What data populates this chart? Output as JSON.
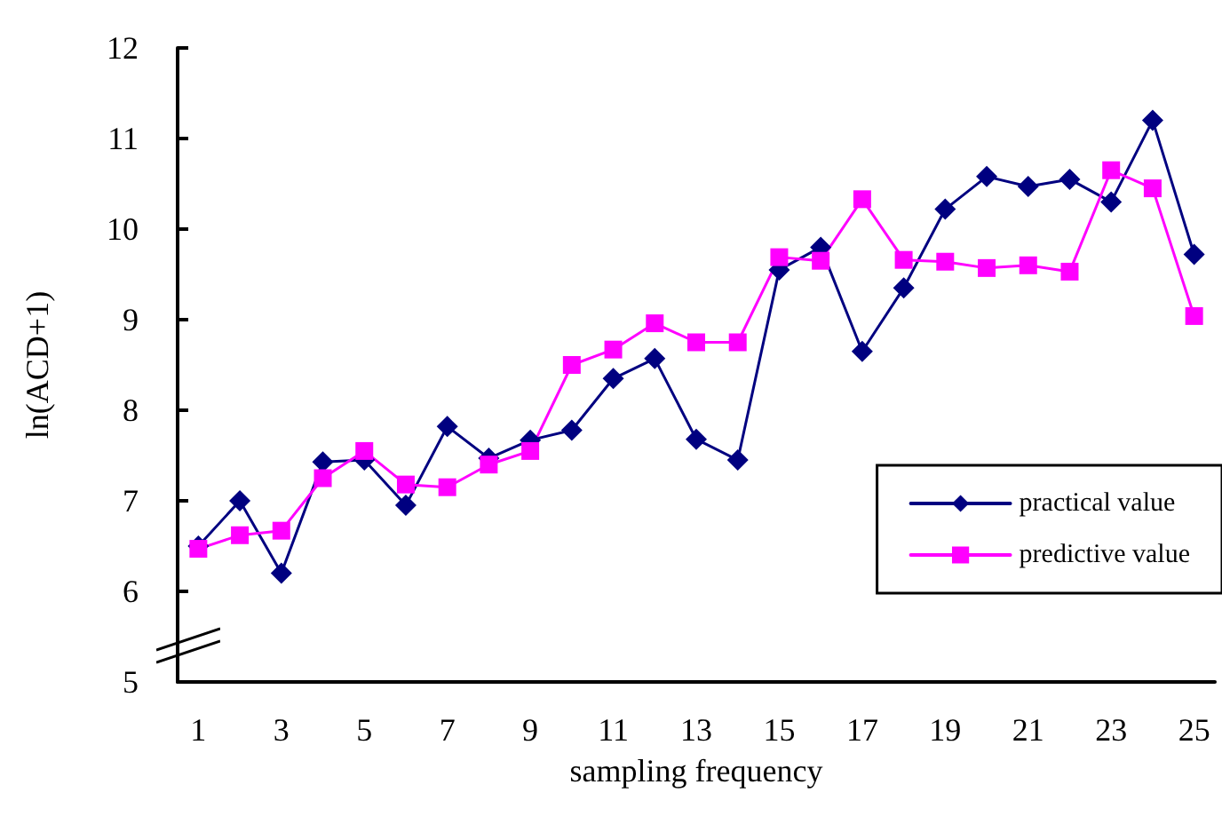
{
  "chart_data": {
    "type": "line",
    "xlabel": "sampling frequency",
    "ylabel": "ln(ACD+1)",
    "x": [
      1,
      2,
      3,
      4,
      5,
      6,
      7,
      8,
      9,
      10,
      11,
      12,
      13,
      14,
      15,
      16,
      17,
      18,
      19,
      20,
      21,
      22,
      23,
      24,
      25
    ],
    "xlim": [
      0.5,
      25.5
    ],
    "xticks": [
      1,
      3,
      5,
      7,
      9,
      11,
      13,
      15,
      17,
      19,
      21,
      23,
      25
    ],
    "ylim": [
      5,
      12
    ],
    "yticks": [
      5,
      6,
      7,
      8,
      9,
      10,
      11,
      12
    ],
    "grid": false,
    "legend": "bottom right",
    "line_style": "solid",
    "series": [
      {
        "name": "practical value",
        "color": "#000080",
        "marker": "diamond",
        "values": [
          6.5,
          7.0,
          6.2,
          7.43,
          7.45,
          6.95,
          7.82,
          7.47,
          7.67,
          7.78,
          8.35,
          8.57,
          7.68,
          7.45,
          9.55,
          9.8,
          8.65,
          9.35,
          10.22,
          10.58,
          10.47,
          10.55,
          10.3,
          11.2,
          9.72
        ]
      },
      {
        "name": "predictive value",
        "color": "#ff00ff",
        "marker": "square",
        "values": [
          6.47,
          6.62,
          6.67,
          7.25,
          7.55,
          7.18,
          7.15,
          7.4,
          7.55,
          8.5,
          8.67,
          8.96,
          8.75,
          8.75,
          9.69,
          9.65,
          10.33,
          9.66,
          9.64,
          9.57,
          9.6,
          9.53,
          10.65,
          10.45,
          9.04
        ]
      }
    ]
  }
}
